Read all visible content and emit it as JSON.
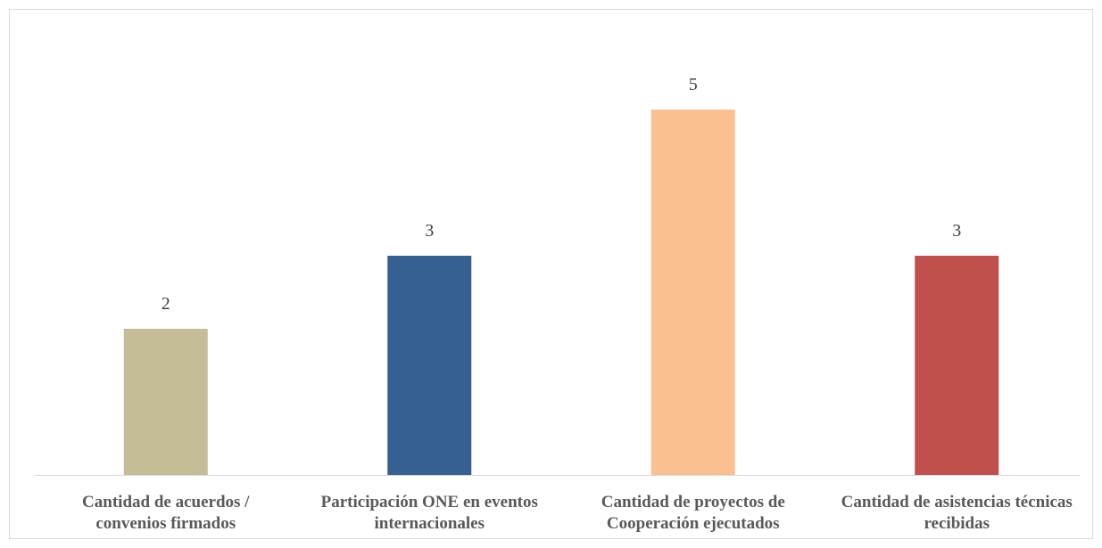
{
  "chart_data": {
    "type": "bar",
    "categories": [
      "Cantidad de acuerdos / convenios firmados",
      "Participación ONE en eventos internacionales",
      "Cantidad de proyectos de Cooperación ejecutados",
      "Cantidad de asistencias técnicas recibidas"
    ],
    "values": [
      2,
      3,
      5,
      3
    ],
    "colors": [
      "#c4bd97",
      "#366092",
      "#fac090",
      "#c0504d"
    ],
    "ylim": [
      0,
      6
    ]
  }
}
